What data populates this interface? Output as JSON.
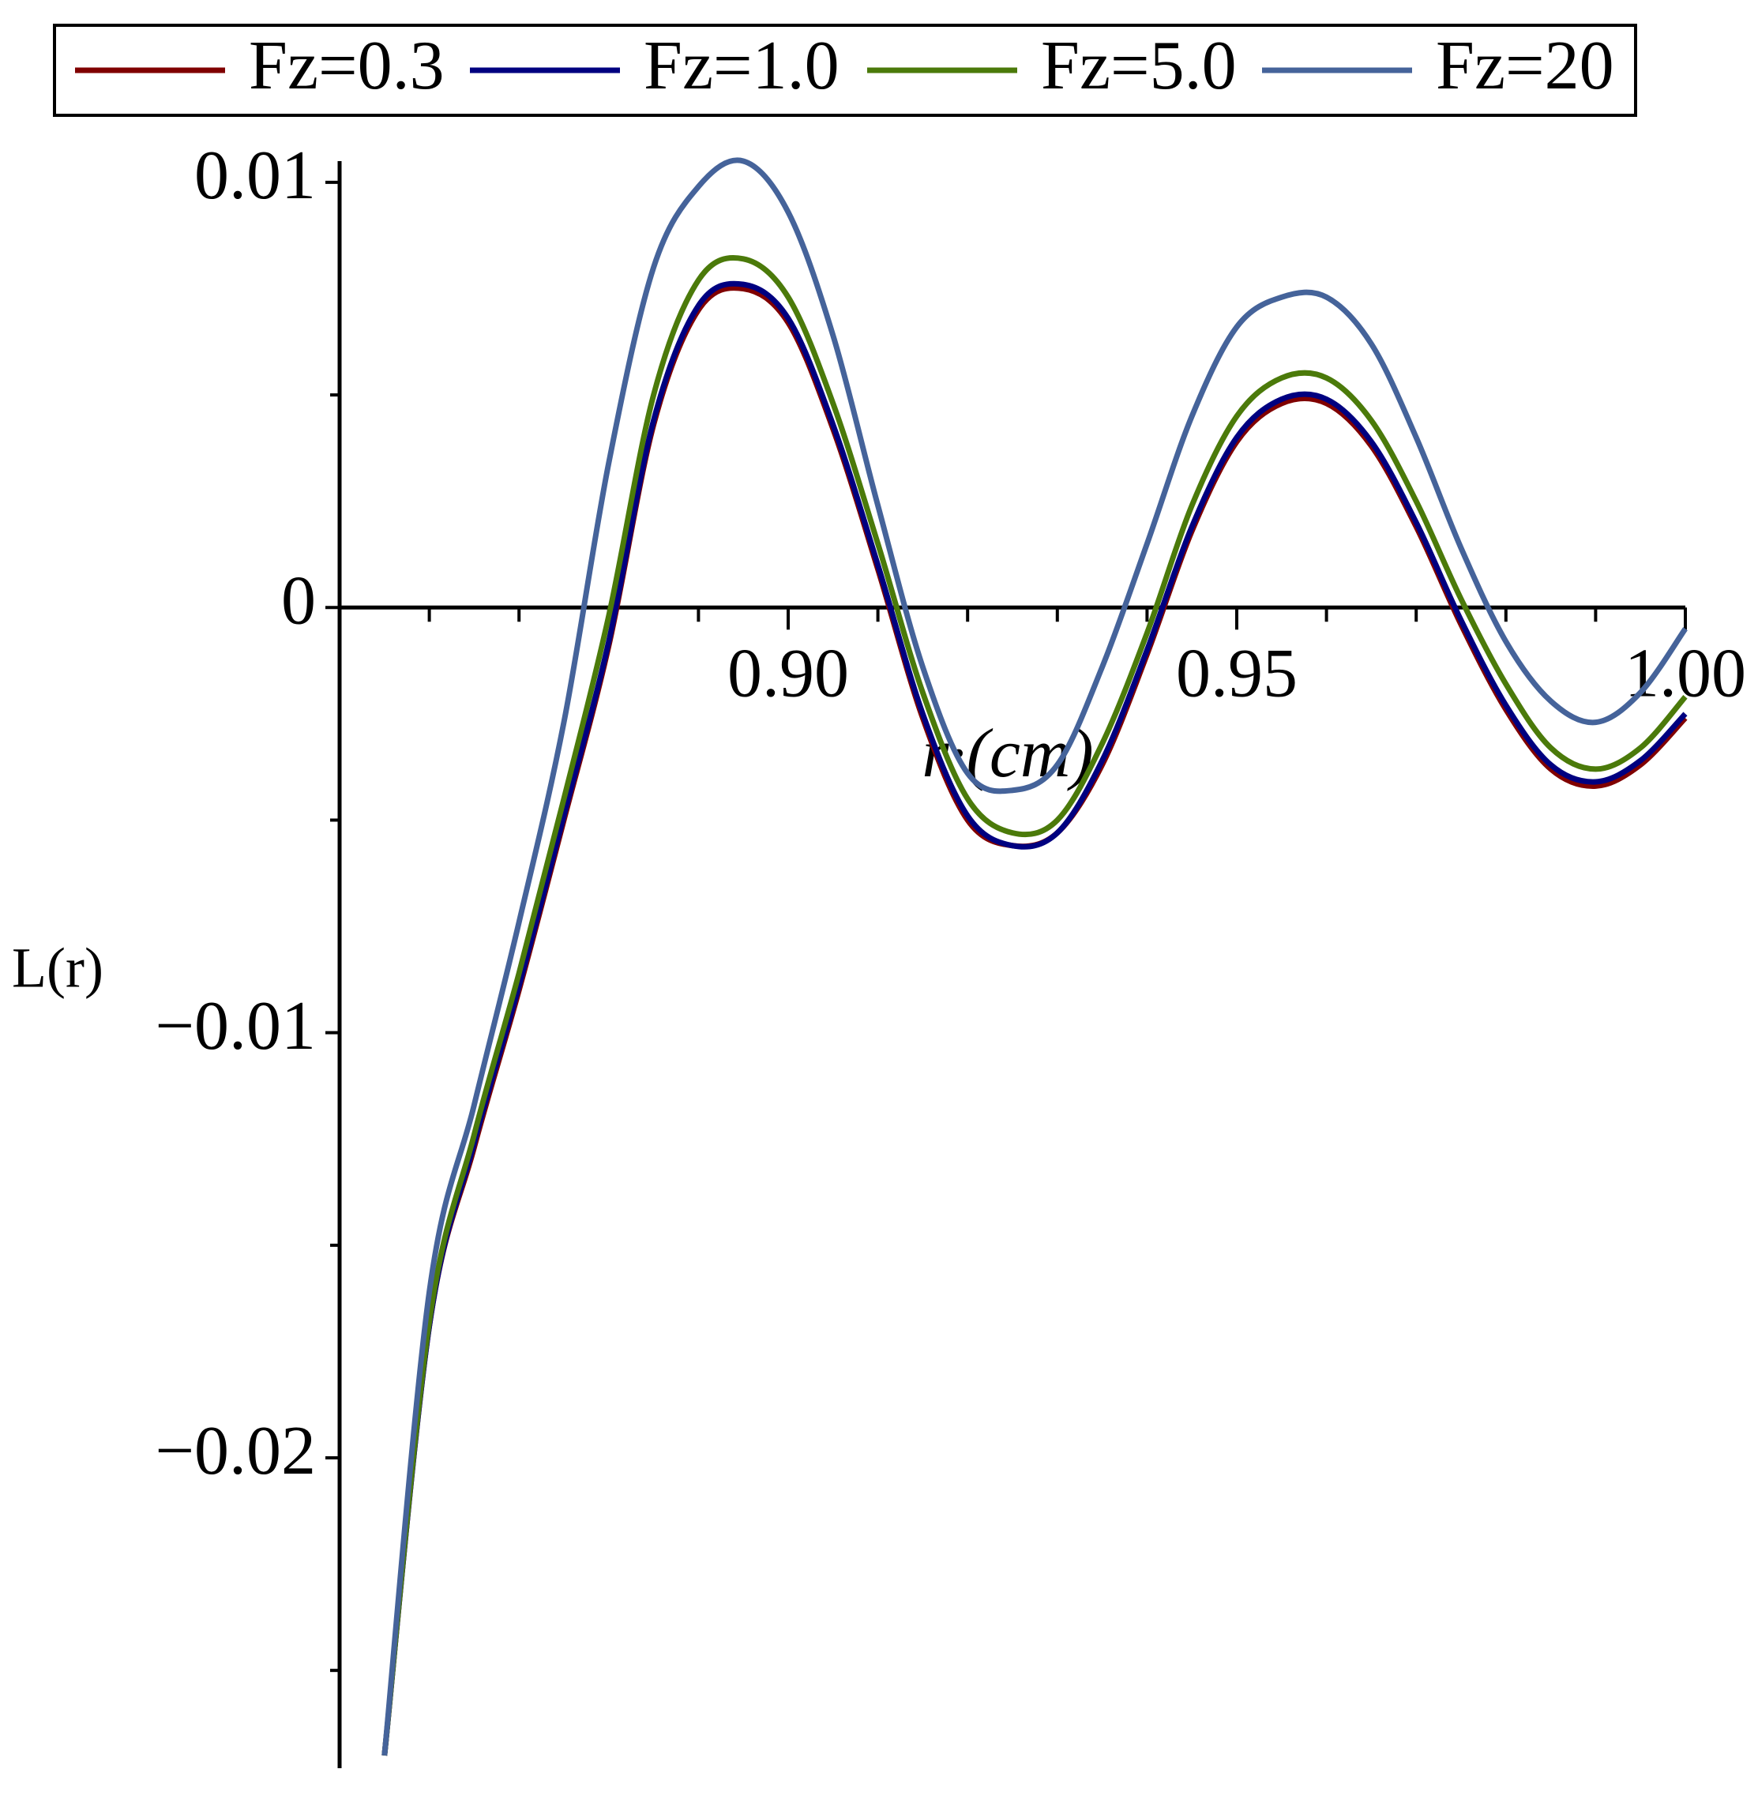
{
  "chart_data": {
    "type": "line",
    "xlabel": "r·(cm)",
    "ylabel": "L(r)",
    "xlim": [
      0.85,
      1.0
    ],
    "ylim": [
      -0.0273,
      0.0105
    ],
    "xticks": [
      {
        "value": 0.9,
        "label": "0.90"
      },
      0.95,
      {
        "value": 1.0,
        "label": "1.00"
      }
    ],
    "xminorticks": [
      0.86,
      0.87,
      0.88,
      0.89,
      0.91,
      0.92,
      0.93,
      0.94,
      0.96,
      0.97,
      0.98,
      0.99
    ],
    "yticks": [
      0.01,
      0,
      {
        "value": -0.01,
        "label": "−0.01"
      },
      {
        "value": -0.02,
        "label": "−0.02"
      }
    ],
    "yminorticks": [
      0.005,
      -0.005,
      -0.015,
      -0.025
    ],
    "legend": "top",
    "x": [
      0.855,
      0.86,
      0.865,
      0.87,
      0.875,
      0.88,
      0.885,
      0.89,
      0.895,
      0.9,
      0.905,
      0.91,
      0.915,
      0.92,
      0.925,
      0.93,
      0.935,
      0.94,
      0.945,
      0.95,
      0.955,
      0.96,
      0.965,
      0.97,
      0.975,
      0.98,
      0.985,
      0.99,
      0.995,
      1.0
    ],
    "series": [
      {
        "name": "Fz=0.3",
        "color": "#800000",
        "values": [
          -0.027,
          -0.0169,
          -0.0127,
          -0.009,
          -0.005,
          -0.0009,
          0.0043,
          0.007,
          0.0075,
          0.0067,
          0.0042,
          0.0009,
          -0.0026,
          -0.005,
          -0.0056,
          -0.0053,
          -0.0037,
          -0.0011,
          0.0018,
          0.0039,
          0.0048,
          0.0048,
          0.0038,
          0.0019,
          -0.0004,
          -0.0024,
          -0.0038,
          -0.0042,
          -0.0037,
          -0.0026
        ]
      },
      {
        "name": "Fz=1.0",
        "color": "#000080",
        "values": [
          -0.027,
          -0.0169,
          -0.0126,
          -0.0089,
          -0.0049,
          -0.0008,
          0.0044,
          0.0071,
          0.0076,
          0.0068,
          0.0043,
          0.001,
          -0.0025,
          -0.0049,
          -0.0056,
          -0.0053,
          -0.0036,
          -0.001,
          0.0019,
          0.004,
          0.0049,
          0.0049,
          0.0039,
          0.002,
          -0.0003,
          -0.0023,
          -0.0037,
          -0.0041,
          -0.0036,
          -0.0025
        ]
      },
      {
        "name": "Fz=5.0",
        "color": "#4b7a0a",
        "values": [
          -0.027,
          -0.0168,
          -0.0124,
          -0.0086,
          -0.0045,
          -0.0002,
          0.005,
          0.0077,
          0.0082,
          0.0073,
          0.0048,
          0.0015,
          -0.002,
          -0.0045,
          -0.0053,
          -0.005,
          -0.0032,
          -0.0006,
          0.0024,
          0.0045,
          0.0054,
          0.0054,
          0.0044,
          0.0025,
          0.0002,
          -0.0018,
          -0.0033,
          -0.0038,
          -0.0033,
          -0.0021
        ]
      },
      {
        "name": "Fz=20",
        "color": "#45639a",
        "values": [
          -0.027,
          -0.0161,
          -0.0117,
          -0.0074,
          -0.0027,
          0.0034,
          0.008,
          0.0099,
          0.0105,
          0.0093,
          0.0064,
          0.0024,
          -0.0014,
          -0.0039,
          -0.0043,
          -0.0037,
          -0.0014,
          0.0015,
          0.0045,
          0.0066,
          0.0073,
          0.0073,
          0.0062,
          0.004,
          0.0014,
          -0.0008,
          -0.0022,
          -0.0027,
          -0.002,
          -0.0005
        ]
      }
    ]
  }
}
